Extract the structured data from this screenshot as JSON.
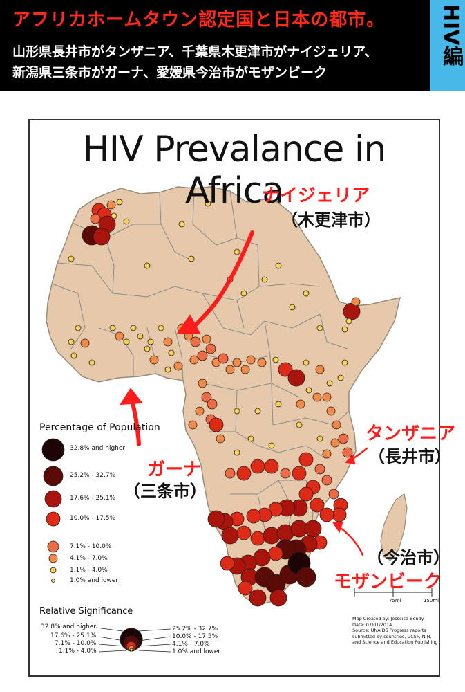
{
  "header": {
    "title": "アフリカホームタウン認定国と日本の都市。",
    "sub_line1": "山形県長井市がタンザニア、千葉県木更津市がナイジェリア、",
    "sub_line2": "新潟県三条市がガーナ、愛媛県今治市がモザンビーク",
    "tag": "HIV編"
  },
  "map": {
    "title": "HIV Prevalance in Africa",
    "colors": {
      "land": "#e6c9ab",
      "border": "#8a8a8a",
      "sea": "#ffffff",
      "arrow": "#ff1c1c",
      "c1": "#f7d25a",
      "c2": "#f28a4a",
      "c3": "#ee6b47",
      "c4": "#dd2b17",
      "c5": "#a9150c",
      "c6": "#5a0a07",
      "c7": "#1c0504"
    },
    "callouts": [
      {
        "country": "ナイジェリア",
        "city": "（木更津市）"
      },
      {
        "country": "タンザニア",
        "city": "（長井市）"
      },
      {
        "country": "ガーナ",
        "city": "（三条市）"
      },
      {
        "country": "モザンビーク",
        "city": "（今治市）"
      }
    ],
    "legend": {
      "title": "Percentage of Population",
      "items": [
        "32.8% and higher",
        "25.2% - 32.7%",
        "17.6% - 25.1%",
        "10.0% - 17.5%",
        "7.1% - 10.0%",
        "4.1% - 7.0%",
        "1.1% - 4.0%",
        "1.0% and lower"
      ]
    },
    "significance": {
      "title": "Relative Significance",
      "left": [
        "32.8% and higher",
        "17.6% - 25.1%",
        "7.1% - 10.0%",
        "1.1% - 4.0%"
      ],
      "right": [
        "25.2% - 32.7%",
        "10.0% - 17.5%",
        "4.1% - 7.0%",
        "1.0% and lower"
      ]
    },
    "scale": {
      "mid": "75mi",
      "end": "150mi"
    },
    "credit": {
      "line1": "Map Created by: Jesscica Bendy",
      "line2": "Date: 07/01/2014",
      "line3": "Source: UNAIDS Progress reports submitted by countries, UCSF, NIH, and Science and Education Publishing"
    }
  }
}
